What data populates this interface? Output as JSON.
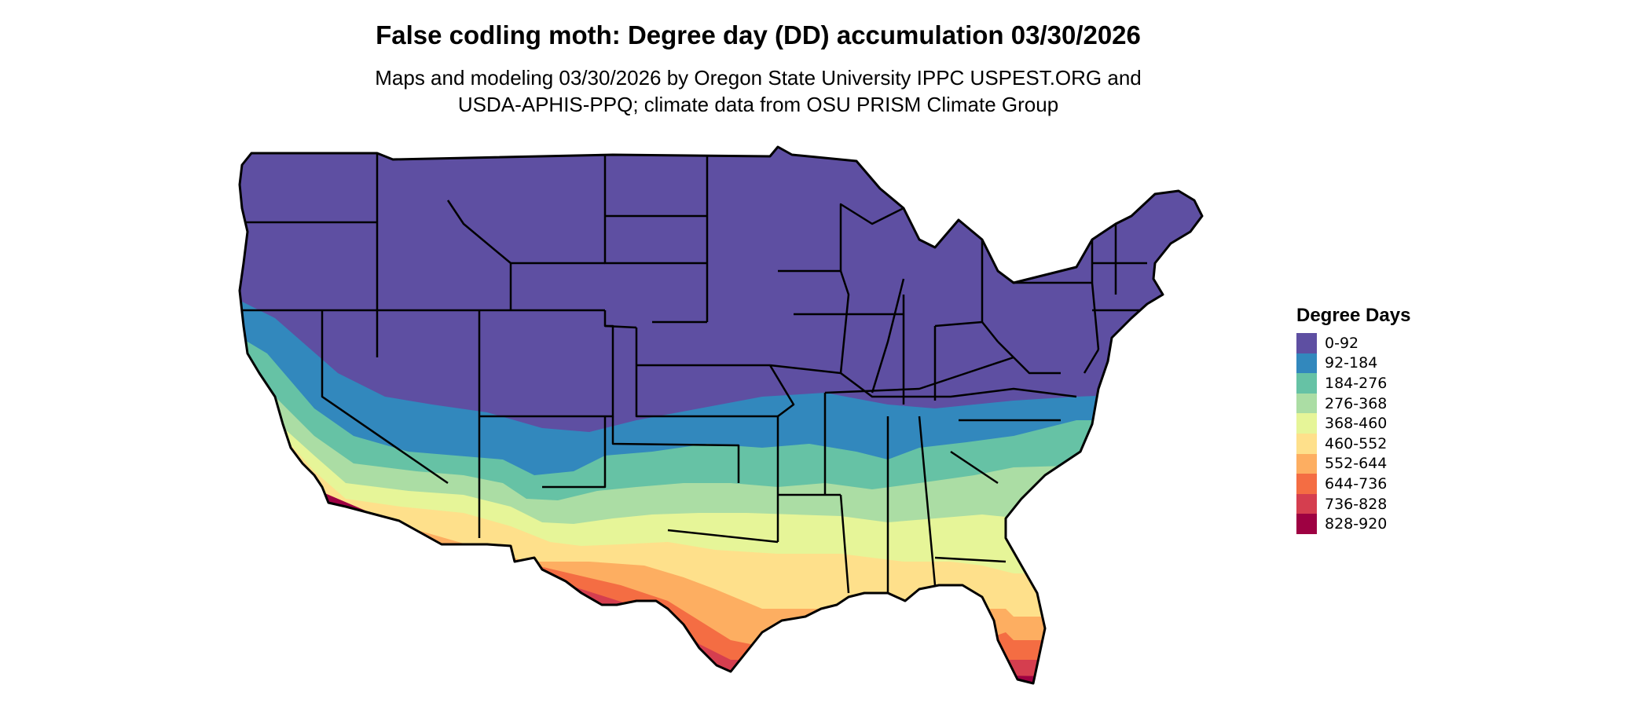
{
  "title": "False codling moth: Degree day (DD) accumulation 03/30/2026",
  "subtitle_lines": [
    "Maps and modeling 03/30/2026 by Oregon State University IPPC USPEST.ORG and",
    "USDA-APHIS-PPQ; climate data from OSU PRISM Climate Group"
  ],
  "legend": {
    "title": "Degree Days",
    "items": [
      {
        "label": "0-92",
        "color": "#5e4fa2"
      },
      {
        "label": "92-184",
        "color": "#3288bd"
      },
      {
        "label": "184-276",
        "color": "#66c2a5"
      },
      {
        "label": "276-368",
        "color": "#abdda4"
      },
      {
        "label": "368-460",
        "color": "#e6f598"
      },
      {
        "label": "460-552",
        "color": "#fee08b"
      },
      {
        "label": "552-644",
        "color": "#fdae61"
      },
      {
        "label": "644-736",
        "color": "#f46d43"
      },
      {
        "label": "736-828",
        "color": "#d53e4f"
      },
      {
        "label": "828-920",
        "color": "#9e0142"
      }
    ]
  }
}
